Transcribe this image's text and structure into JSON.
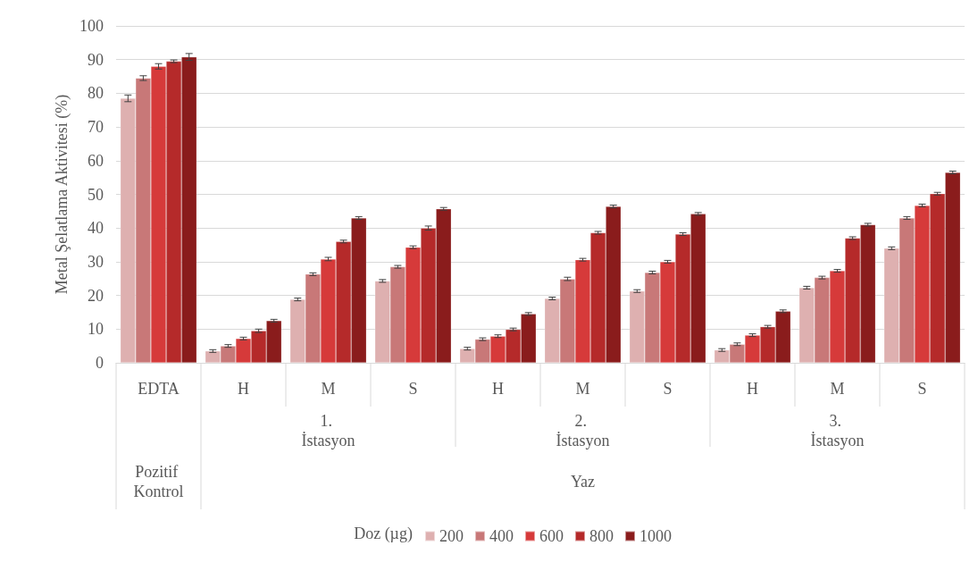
{
  "chart_data": {
    "type": "bar",
    "ylabel": "Metal Şelatlama Aktivitesi (%)",
    "legend_title": "Doz (µg)",
    "categories": [
      "EDTA",
      "H",
      "M",
      "S",
      "H",
      "M",
      "S",
      "H",
      "M",
      "S"
    ],
    "annotations": [
      "1. İstasyon",
      "2. İstasyon",
      "3. İstasyon",
      "Pozitif Kontrol",
      "Yaz"
    ],
    "series": [
      {
        "name": "200",
        "color": "#deb0b0",
        "values": [
          78.5,
          3.5,
          18.8,
          24.3,
          4.2,
          19.1,
          21.3,
          3.8,
          22.3,
          34
        ],
        "errors": [
          1,
          0.4,
          0.4,
          0.4,
          0.4,
          0.4,
          0.4,
          0.4,
          0.4,
          0.4
        ]
      },
      {
        "name": "400",
        "color": "#c87878",
        "values": [
          84.5,
          5,
          26.3,
          28.5,
          7,
          24.9,
          26.8,
          5.5,
          25.3,
          43
        ],
        "errors": [
          0.7,
          0.4,
          0.4,
          0.4,
          0.4,
          0.5,
          0.4,
          0.4,
          0.4,
          0.4
        ]
      },
      {
        "name": "600",
        "color": "#d63a3a",
        "values": [
          88,
          7.2,
          30.8,
          34.3,
          7.9,
          30.6,
          30,
          8.2,
          27.3,
          46.7
        ],
        "errors": [
          0.8,
          0.4,
          0.5,
          0.4,
          0.4,
          0.4,
          0.4,
          0.4,
          0.4,
          0.4
        ]
      },
      {
        "name": "800",
        "color": "#b52a2a",
        "values": [
          89.5,
          9.5,
          36,
          40,
          9.9,
          38.6,
          38.2,
          10.7,
          37,
          50.2
        ],
        "errors": [
          0.4,
          0.5,
          0.4,
          0.6,
          0.4,
          0.4,
          0.4,
          0.4,
          0.4,
          0.4
        ]
      },
      {
        "name": "1000",
        "color": "#8a1c1c",
        "values": [
          90.8,
          12.5,
          43,
          45.7,
          14.5,
          46.4,
          44.2,
          15.3,
          41,
          56.5
        ],
        "errors": [
          1,
          0.4,
          0.4,
          0.4,
          0.4,
          0.4,
          0.4,
          0.4,
          0.4,
          0.4
        ]
      }
    ],
    "ylim": [
      0,
      100
    ],
    "yticks": [
      0,
      10,
      20,
      30,
      40,
      50,
      60,
      70,
      80,
      90,
      100
    ],
    "grid": "y",
    "legend": "bottom"
  }
}
